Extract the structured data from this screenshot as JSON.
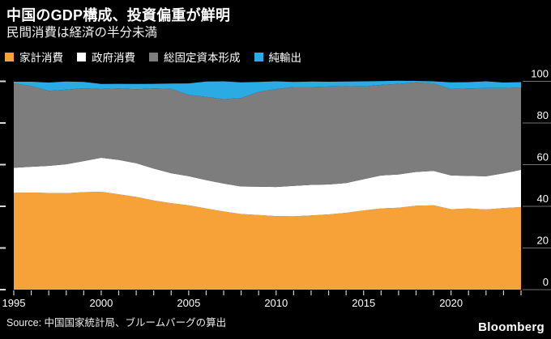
{
  "header": {
    "title": "中国のGDP構成、投資偏重が鮮明",
    "subtitle": "民間消費は経済の半分未満"
  },
  "legend": [
    {
      "label": "家計消費",
      "color": "#F7A139"
    },
    {
      "label": "政府消費",
      "color": "#FFFFFF"
    },
    {
      "label": "総固定資本形成",
      "color": "#7D7D7D"
    },
    {
      "label": "純輸出",
      "color": "#2AABE4"
    }
  ],
  "chart_data": {
    "type": "area",
    "stacked": true,
    "unit": "percent of GDP",
    "title": "中国のGDP構成、投資偏重が鮮明",
    "xlabel": "",
    "ylabel": "",
    "ylim": [
      0,
      100
    ],
    "grid": false,
    "legend_position": "top",
    "x": [
      1995,
      1996,
      1997,
      1998,
      1999,
      2000,
      2001,
      2002,
      2003,
      2004,
      2005,
      2006,
      2007,
      2008,
      2009,
      2010,
      2011,
      2012,
      2013,
      2014,
      2015,
      2016,
      2017,
      2018,
      2019,
      2020,
      2021,
      2022,
      2023,
      2024
    ],
    "x_tick_labels": [
      1995,
      2000,
      2005,
      2010,
      2015,
      2020
    ],
    "y_tick_labels": [
      0,
      20,
      40,
      60,
      80,
      100
    ],
    "series": [
      {
        "name": "家計消費",
        "color": "#F7A139",
        "values": [
          46.5,
          46.6,
          46.4,
          46.3,
          46.8,
          47.0,
          45.8,
          44.5,
          42.8,
          41.5,
          40.5,
          39.0,
          37.5,
          36.3,
          35.8,
          35.3,
          35.2,
          35.6,
          36.1,
          36.9,
          38.0,
          39.0,
          39.3,
          40.3,
          40.5,
          38.6,
          39.0,
          38.5,
          39.2,
          39.6
        ]
      },
      {
        "name": "政府消費",
        "color": "#FFFFFF",
        "values": [
          12.0,
          12.4,
          13.0,
          13.9,
          14.9,
          16.3,
          16.5,
          16.2,
          15.3,
          14.4,
          14.0,
          13.6,
          13.4,
          13.2,
          13.6,
          14.0,
          14.6,
          14.7,
          14.4,
          14.3,
          15.0,
          15.8,
          16.0,
          16.2,
          16.5,
          16.2,
          15.6,
          15.9,
          16.6,
          17.9
        ]
      },
      {
        "name": "総固定資本形成",
        "color": "#7D7D7D",
        "values": [
          40.5,
          38.8,
          36.0,
          35.8,
          35.0,
          33.0,
          34.3,
          35.5,
          38.5,
          40.5,
          39.0,
          40.0,
          40.5,
          42.5,
          45.5,
          47.0,
          47.5,
          47.0,
          47.0,
          46.5,
          44.5,
          43.5,
          43.5,
          43.0,
          42.0,
          41.5,
          42.0,
          42.4,
          41.0,
          39.6
        ]
      },
      {
        "name": "純輸出",
        "color": "#2AABE4",
        "values": [
          0.8,
          2.0,
          4.0,
          3.9,
          3.0,
          2.4,
          2.2,
          2.5,
          2.2,
          2.5,
          5.5,
          7.3,
          8.6,
          7.5,
          4.8,
          3.7,
          2.4,
          2.6,
          2.3,
          2.2,
          2.5,
          1.8,
          1.5,
          0.7,
          1.0,
          3.2,
          3.0,
          3.2,
          2.6,
          2.5
        ]
      }
    ]
  },
  "footer": {
    "source": "Source: 中国国家統計局、ブルームバーグの算出",
    "brand": "Bloomberg"
  }
}
